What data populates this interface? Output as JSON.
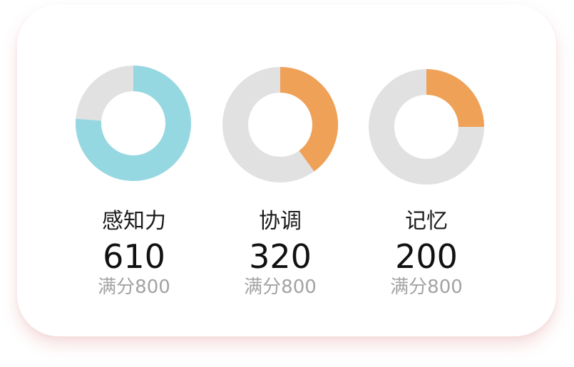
{
  "colors": {
    "track": "#e1e1e1",
    "cyan": "#96d8e2",
    "orange": "#eea157"
  },
  "metrics": [
    {
      "label": "感知力",
      "score": "610",
      "max_label": "满分800",
      "fraction": 0.7625,
      "color": "#96d8e2"
    },
    {
      "label": "协调",
      "score": "320",
      "max_label": "满分800",
      "fraction": 0.4,
      "color": "#eea157"
    },
    {
      "label": "记忆",
      "score": "200",
      "max_label": "满分800",
      "fraction": 0.25,
      "color": "#eea157"
    }
  ]
}
